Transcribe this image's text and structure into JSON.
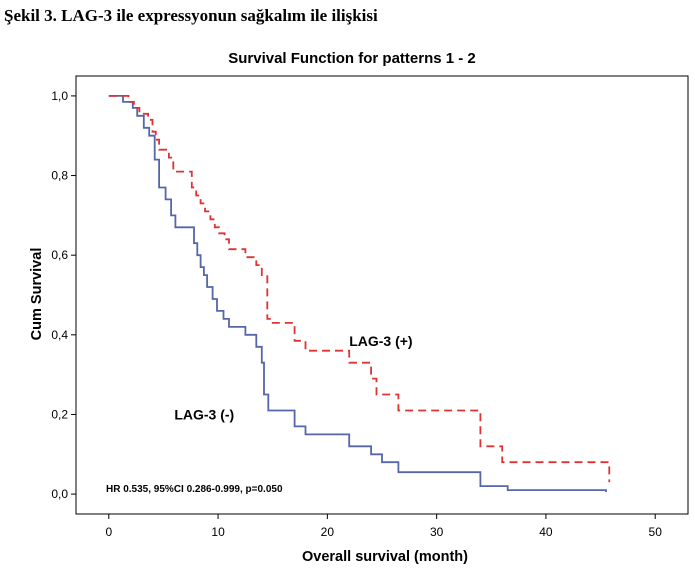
{
  "heading": "Şekil 3. LAG-3 ile expressyonun sağkalım ile ilişkisi",
  "chart_data": {
    "type": "line",
    "step": true,
    "title": "Survival Function for patterns 1 - 2",
    "xlabel": "Overall survival (month)",
    "ylabel": "Cum Survival",
    "xlim": [
      -3,
      53
    ],
    "ylim": [
      -0.05,
      1.05
    ],
    "x_ticks": [
      0,
      10,
      20,
      30,
      40,
      50
    ],
    "x_tick_labels": [
      "0",
      "10",
      "20",
      "30",
      "40",
      "50"
    ],
    "y_ticks": [
      0,
      0.2,
      0.4,
      0.6,
      0.8,
      1.0
    ],
    "y_tick_labels": [
      "0,0",
      "0,2",
      "0,4",
      "0,6",
      "0,8",
      "1,0"
    ],
    "grid": false,
    "annotation": "HR 0.535,  95%CI 0.286-0.999, p=0.050",
    "series": [
      {
        "name": "LAG-3 (-)",
        "color": "#5566aa",
        "dash": "solid",
        "label_at": [
          6,
          0.2
        ],
        "points": [
          [
            0,
            1.0
          ],
          [
            1.3,
            1.0
          ],
          [
            1.3,
            0.985
          ],
          [
            2.2,
            0.985
          ],
          [
            2.2,
            0.97
          ],
          [
            2.6,
            0.97
          ],
          [
            2.6,
            0.95
          ],
          [
            3.2,
            0.95
          ],
          [
            3.2,
            0.92
          ],
          [
            3.7,
            0.92
          ],
          [
            3.7,
            0.9
          ],
          [
            4.2,
            0.9
          ],
          [
            4.2,
            0.84
          ],
          [
            4.6,
            0.84
          ],
          [
            4.6,
            0.77
          ],
          [
            5.2,
            0.77
          ],
          [
            5.2,
            0.74
          ],
          [
            5.7,
            0.74
          ],
          [
            5.7,
            0.7
          ],
          [
            6.1,
            0.7
          ],
          [
            6.1,
            0.67
          ],
          [
            7.8,
            0.67
          ],
          [
            7.8,
            0.63
          ],
          [
            8.1,
            0.63
          ],
          [
            8.1,
            0.6
          ],
          [
            8.4,
            0.6
          ],
          [
            8.4,
            0.57
          ],
          [
            8.7,
            0.57
          ],
          [
            8.7,
            0.55
          ],
          [
            9.0,
            0.55
          ],
          [
            9.0,
            0.52
          ],
          [
            9.5,
            0.52
          ],
          [
            9.5,
            0.49
          ],
          [
            9.9,
            0.49
          ],
          [
            9.9,
            0.46
          ],
          [
            10.5,
            0.46
          ],
          [
            10.5,
            0.44
          ],
          [
            11.0,
            0.44
          ],
          [
            11.0,
            0.42
          ],
          [
            12.5,
            0.42
          ],
          [
            12.5,
            0.4
          ],
          [
            13.5,
            0.4
          ],
          [
            13.5,
            0.37
          ],
          [
            14.0,
            0.37
          ],
          [
            14.0,
            0.33
          ],
          [
            14.2,
            0.33
          ],
          [
            14.2,
            0.25
          ],
          [
            14.6,
            0.25
          ],
          [
            14.6,
            0.21
          ],
          [
            17.0,
            0.21
          ],
          [
            17.0,
            0.17
          ],
          [
            18.0,
            0.17
          ],
          [
            18.0,
            0.15
          ],
          [
            22.0,
            0.15
          ],
          [
            22.0,
            0.12
          ],
          [
            24.0,
            0.12
          ],
          [
            24.0,
            0.1
          ],
          [
            25.0,
            0.1
          ],
          [
            25.0,
            0.08
          ],
          [
            26.5,
            0.08
          ],
          [
            26.5,
            0.055
          ],
          [
            34.0,
            0.055
          ],
          [
            34.0,
            0.02
          ],
          [
            36.5,
            0.02
          ],
          [
            36.5,
            0.01
          ],
          [
            45.5,
            0.01
          ],
          [
            45.5,
            0.005
          ]
        ]
      },
      {
        "name": "LAG-3 (+)",
        "color": "#dd3333",
        "dash": "dashed",
        "label_at": [
          22,
          0.385
        ],
        "points": [
          [
            0,
            1.0
          ],
          [
            1.8,
            1.0
          ],
          [
            1.8,
            0.985
          ],
          [
            2.3,
            0.985
          ],
          [
            2.3,
            0.97
          ],
          [
            2.8,
            0.97
          ],
          [
            2.8,
            0.955
          ],
          [
            3.6,
            0.955
          ],
          [
            3.6,
            0.94
          ],
          [
            4.0,
            0.94
          ],
          [
            4.0,
            0.91
          ],
          [
            4.3,
            0.91
          ],
          [
            4.3,
            0.89
          ],
          [
            4.6,
            0.89
          ],
          [
            4.6,
            0.865
          ],
          [
            5.5,
            0.865
          ],
          [
            5.5,
            0.845
          ],
          [
            5.9,
            0.845
          ],
          [
            5.9,
            0.81
          ],
          [
            7.6,
            0.81
          ],
          [
            7.6,
            0.77
          ],
          [
            8.0,
            0.77
          ],
          [
            8.0,
            0.75
          ],
          [
            8.4,
            0.75
          ],
          [
            8.4,
            0.73
          ],
          [
            8.8,
            0.73
          ],
          [
            8.8,
            0.71
          ],
          [
            9.3,
            0.71
          ],
          [
            9.3,
            0.69
          ],
          [
            9.7,
            0.69
          ],
          [
            9.7,
            0.67
          ],
          [
            10.1,
            0.67
          ],
          [
            10.1,
            0.655
          ],
          [
            10.6,
            0.655
          ],
          [
            10.6,
            0.64
          ],
          [
            11.0,
            0.64
          ],
          [
            11.0,
            0.615
          ],
          [
            12.5,
            0.615
          ],
          [
            12.5,
            0.595
          ],
          [
            13.5,
            0.595
          ],
          [
            13.5,
            0.575
          ],
          [
            14.0,
            0.575
          ],
          [
            14.0,
            0.55
          ],
          [
            14.5,
            0.55
          ],
          [
            14.5,
            0.44
          ],
          [
            15.0,
            0.44
          ],
          [
            15.0,
            0.43
          ],
          [
            17.0,
            0.43
          ],
          [
            17.0,
            0.385
          ],
          [
            18.0,
            0.385
          ],
          [
            18.0,
            0.36
          ],
          [
            22.0,
            0.36
          ],
          [
            22.0,
            0.33
          ],
          [
            24.0,
            0.33
          ],
          [
            24.0,
            0.29
          ],
          [
            24.5,
            0.29
          ],
          [
            24.5,
            0.25
          ],
          [
            26.5,
            0.25
          ],
          [
            26.5,
            0.21
          ],
          [
            34.0,
            0.21
          ],
          [
            34.0,
            0.12
          ],
          [
            36.0,
            0.12
          ],
          [
            36.0,
            0.08
          ],
          [
            45.8,
            0.08
          ],
          [
            45.8,
            0.03
          ]
        ]
      }
    ]
  }
}
